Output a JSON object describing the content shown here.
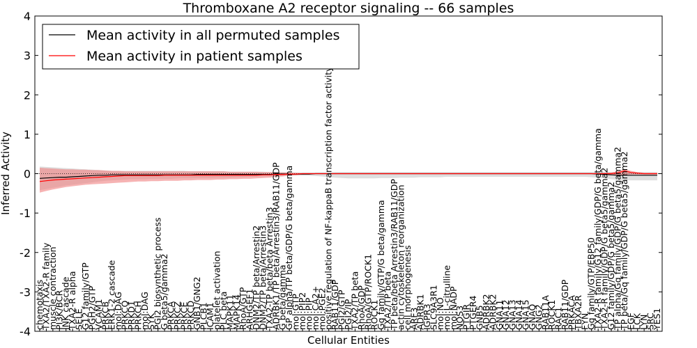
{
  "chart_data": {
    "type": "line",
    "title": "Thromboxane A2 receptor signaling -- 66 samples",
    "xlabel": "Cellular Entities",
    "ylabel": "Inferred Activity",
    "ylim": [
      -4,
      4
    ],
    "yticks": [
      "-4",
      "-3",
      "-2",
      "-1",
      "0",
      "1",
      "2",
      "3",
      "4"
    ],
    "legend": {
      "position": "top-left",
      "entries": [
        {
          "label": "Mean activity in all permuted samples",
          "color": "#000000"
        },
        {
          "label": "Mean activity in patient samples",
          "color": "#ff0000"
        }
      ]
    },
    "colors": {
      "permuted_band": "#c8c8c8",
      "patient_band": "#f08080"
    },
    "categories": [
      "chemotaxis",
      "TXA2/TXA2-R family",
      "muscle contraction",
      "PI3K/BCR",
      "JNK cascade",
      "TXA2-R alpha",
      "SELE",
      "G12 family/GTP",
      "PGH2/GTP",
      "VCAM1",
      "PRKCB",
      "ERK1-2 cascade",
      "mol:DAG",
      "PRKCQ",
      "PRKD1",
      "PRKCH",
      "mol:DAG",
      "SYK",
      "PGI2 biosynthetic process",
      "G beta5/gamma2",
      "PRKCA",
      "PRKCZ",
      "PRKCE",
      "PRKCD",
      "GNB1/GNG2",
      "PLCB1",
      "ICAM1",
      "platelet activation",
      "PLC beta",
      "MAPK11",
      "MAPK14",
      "RhoA/GTP",
      "ARHGEF1",
      "DNM2/TP beta/Arrestin2",
      "DNM2/TP beta/Arrestin3",
      "TXA2-TP beta/beta Arrestin3",
      "ADRBK1/TP beta/Arrestin3/RAB11/GDP",
      "G beta/gamma",
      "GP alpha/TP beta/GDP/G beta/gamma",
      "mol:GTP",
      "mol:PIP2",
      "mol:PIP",
      "mol:CA2+",
      "mol:PGE2",
      "positive regulation of NF-kappaB transcription factor activity",
      "RAB11/GDP",
      "PGI2/GTP",
      "PGI2/IP",
      "TXA2/TP beta",
      "RhoA/GDP",
      "RhoA/GTP/ROCK1",
      "ROCK1",
      "Gq family/GTP/G beta/gamma",
      "TXA2/TP beta",
      "TP beta/beta Arrestin3/RAB11/GDP",
      "actin cytoskeleton reorganization",
      "cell morphogenesis",
      "ARF3",
      "ADRBK1",
      "IGPR3",
      "SLC9A3R1",
      "mol:NO",
      "mol:L-citrulline",
      "mol:NADP",
      "NOS3",
      "PTGIR",
      "PTGER4",
      "GNB5",
      "ADRBK2",
      "ADRBK2",
      "GNA11",
      "GNA12",
      "GNA13",
      "GNA14",
      "GNA15",
      "GNAQ",
      "GNG2",
      "RAB11A",
      "ROCK1",
      "RAC1",
      "RAB11/GDP",
      "PRKACA",
      "TBXA2R",
      "FYN",
      "Gq family/GTP/EBP50",
      "TXA2-R family/G12 family/GDP/G beta/gamma",
      "TXA2-R family/GDP/G beta5/gamma2",
      "G12 family/GDP/G beta5/gamma2",
      "TP alpha/Gq family/GDP/G beta5/gamma2",
      "TP beta/Gq family/GDP/G beta5/gamma2",
      "EGF",
      "LCK",
      "LYN",
      "SRC",
      "YES1"
    ],
    "permuted_mean": [
      -0.12,
      -0.11,
      -0.1,
      -0.09,
      -0.09,
      -0.08,
      -0.07,
      -0.06,
      -0.05,
      -0.04,
      -0.04,
      -0.03,
      -0.03,
      -0.03,
      -0.03,
      -0.03,
      -0.03,
      -0.03,
      -0.03,
      -0.03,
      -0.03,
      -0.03,
      -0.03,
      -0.03,
      -0.02,
      -0.02,
      -0.02,
      -0.02,
      -0.02,
      -0.02,
      -0.02,
      -0.02,
      -0.02,
      -0.02,
      -0.02,
      -0.02,
      -0.01,
      -0.01,
      -0.01,
      -0.01,
      -0.01,
      -0.01,
      0.0,
      0.0,
      0.0,
      0.0,
      0.0,
      0.0,
      0.0,
      0.0,
      0.0,
      0.0,
      0.0,
      0.0,
      0.0,
      0.0,
      0.0,
      0.0,
      0.0,
      0.0,
      0.0,
      0.0,
      0.0,
      0.0,
      0.0,
      0.0,
      0.0,
      0.0,
      0.0,
      0.0,
      0.0,
      0.0,
      0.0,
      0.0,
      0.0,
      0.0,
      0.0,
      0.0,
      0.0,
      0.0,
      0.0,
      0.0,
      0.0,
      0.0,
      0.0,
      -0.01,
      -0.02,
      -0.03,
      -0.04,
      -0.04,
      -0.04,
      -0.04,
      -0.04,
      -0.04,
      -0.04
    ],
    "permuted_upper": [
      0.18,
      0.17,
      0.16,
      0.15,
      0.14,
      0.13,
      0.12,
      0.11,
      0.1,
      0.09,
      0.08,
      0.07,
      0.07,
      0.07,
      0.07,
      0.07,
      0.07,
      0.07,
      0.07,
      0.07,
      0.07,
      0.07,
      0.07,
      0.06,
      0.06,
      0.06,
      0.06,
      0.06,
      0.06,
      0.05,
      0.05,
      0.05,
      0.05,
      0.05,
      0.05,
      0.04,
      0.04,
      0.04,
      0.04,
      0.03,
      0.03,
      0.03,
      0.03,
      0.03,
      0.03,
      0.04,
      0.04,
      0.04,
      0.04,
      0.04,
      0.04,
      0.04,
      0.04,
      0.04,
      0.04,
      0.04,
      0.04,
      0.04,
      0.04,
      0.04,
      0.04,
      0.04,
      0.04,
      0.04,
      0.04,
      0.04,
      0.04,
      0.04,
      0.04,
      0.04,
      0.04,
      0.04,
      0.04,
      0.04,
      0.04,
      0.04,
      0.04,
      0.04,
      0.04,
      0.04,
      0.04,
      0.04,
      0.04,
      0.04,
      0.04,
      0.05,
      0.05,
      0.04,
      0.04,
      0.04,
      0.04,
      0.04,
      0.04,
      0.04,
      0.04
    ],
    "permuted_lower": [
      -0.42,
      -0.39,
      -0.36,
      -0.33,
      -0.3,
      -0.28,
      -0.26,
      -0.24,
      -0.22,
      -0.2,
      -0.18,
      -0.17,
      -0.16,
      -0.15,
      -0.14,
      -0.14,
      -0.14,
      -0.13,
      -0.13,
      -0.13,
      -0.13,
      -0.12,
      -0.12,
      -0.12,
      -0.11,
      -0.11,
      -0.11,
      -0.1,
      -0.1,
      -0.1,
      -0.09,
      -0.09,
      -0.08,
      -0.08,
      -0.07,
      -0.07,
      -0.06,
      -0.06,
      -0.05,
      -0.05,
      -0.05,
      -0.05,
      -0.06,
      -0.07,
      -0.09,
      -0.1,
      -0.11,
      -0.12,
      -0.12,
      -0.12,
      -0.12,
      -0.12,
      -0.11,
      -0.11,
      -0.11,
      -0.1,
      -0.1,
      -0.1,
      -0.09,
      -0.09,
      -0.09,
      -0.09,
      -0.08,
      -0.08,
      -0.08,
      -0.08,
      -0.08,
      -0.08,
      -0.08,
      -0.08,
      -0.08,
      -0.08,
      -0.08,
      -0.08,
      -0.08,
      -0.08,
      -0.08,
      -0.08,
      -0.08,
      -0.08,
      -0.08,
      -0.08,
      -0.08,
      -0.08,
      -0.09,
      -0.1,
      -0.12,
      -0.14,
      -0.16,
      -0.17,
      -0.17,
      -0.17,
      -0.17,
      -0.17,
      -0.17
    ],
    "patient_mean": [
      -0.2,
      -0.18,
      -0.16,
      -0.15,
      -0.14,
      -0.13,
      -0.12,
      -0.11,
      -0.1,
      -0.09,
      -0.08,
      -0.07,
      -0.06,
      -0.05,
      -0.05,
      -0.05,
      -0.05,
      -0.05,
      -0.05,
      -0.04,
      -0.04,
      -0.04,
      -0.04,
      -0.04,
      -0.04,
      -0.04,
      -0.04,
      -0.04,
      -0.04,
      -0.04,
      -0.04,
      -0.04,
      -0.04,
      -0.04,
      -0.03,
      -0.03,
      -0.02,
      -0.02,
      -0.01,
      -0.01,
      0.0,
      0.0,
      0.0,
      0.0,
      0.0,
      0.0,
      0.0,
      0.0,
      0.0,
      0.0,
      0.0,
      0.0,
      0.0,
      0.0,
      0.0,
      0.0,
      0.0,
      0.0,
      0.0,
      0.0,
      0.0,
      0.0,
      0.0,
      0.0,
      0.0,
      0.0,
      0.0,
      0.0,
      0.0,
      0.0,
      0.0,
      0.0,
      0.0,
      0.0,
      0.0,
      0.0,
      0.0,
      0.0,
      0.0,
      0.0,
      0.0,
      0.0,
      0.0,
      0.0,
      0.0,
      0.0,
      0.0,
      0.0,
      0.02,
      0.07,
      0.03,
      0.01,
      0.0,
      0.0,
      0.0
    ],
    "patient_upper": [
      0.15,
      0.14,
      0.13,
      0.12,
      0.11,
      0.11,
      0.1,
      0.1,
      0.09,
      0.09,
      0.08,
      0.07,
      0.07,
      0.06,
      0.06,
      0.06,
      0.06,
      0.06,
      0.06,
      0.06,
      0.06,
      0.06,
      0.06,
      0.06,
      0.06,
      0.06,
      0.06,
      0.06,
      0.06,
      0.05,
      0.05,
      0.05,
      0.05,
      0.05,
      0.04,
      0.04,
      0.03,
      0.03,
      0.02,
      0.02,
      0.01,
      0.01,
      0.01,
      0.01,
      0.01,
      0.01,
      0.01,
      0.01,
      0.01,
      0.01,
      0.01,
      0.01,
      0.01,
      0.01,
      0.01,
      0.01,
      0.01,
      0.01,
      0.01,
      0.01,
      0.01,
      0.01,
      0.01,
      0.01,
      0.01,
      0.01,
      0.01,
      0.01,
      0.01,
      0.01,
      0.01,
      0.01,
      0.01,
      0.01,
      0.01,
      0.01,
      0.01,
      0.01,
      0.01,
      0.01,
      0.01,
      0.01,
      0.01,
      0.01,
      0.01,
      0.01,
      0.02,
      0.03,
      0.06,
      0.12,
      0.07,
      0.04,
      0.02,
      0.02,
      0.02
    ],
    "patient_lower": [
      -0.48,
      -0.44,
      -0.4,
      -0.37,
      -0.34,
      -0.32,
      -0.3,
      -0.28,
      -0.27,
      -0.26,
      -0.25,
      -0.24,
      -0.23,
      -0.22,
      -0.21,
      -0.2,
      -0.2,
      -0.19,
      -0.19,
      -0.18,
      -0.18,
      -0.18,
      -0.17,
      -0.17,
      -0.16,
      -0.16,
      -0.16,
      -0.15,
      -0.15,
      -0.14,
      -0.14,
      -0.13,
      -0.13,
      -0.12,
      -0.11,
      -0.1,
      -0.08,
      -0.07,
      -0.05,
      -0.04,
      -0.02,
      -0.01,
      -0.01,
      -0.01,
      -0.01,
      -0.01,
      -0.01,
      -0.01,
      -0.01,
      -0.01,
      -0.01,
      -0.01,
      -0.01,
      -0.01,
      -0.01,
      -0.01,
      -0.01,
      -0.01,
      -0.01,
      -0.01,
      -0.01,
      -0.01,
      -0.01,
      -0.01,
      -0.01,
      -0.01,
      -0.01,
      -0.01,
      -0.01,
      -0.01,
      -0.01,
      -0.01,
      -0.01,
      -0.01,
      -0.01,
      -0.01,
      -0.01,
      -0.01,
      -0.01,
      -0.01,
      -0.01,
      -0.01,
      -0.01,
      -0.01,
      -0.01,
      -0.01,
      -0.02,
      -0.03,
      -0.04,
      -0.03,
      -0.02,
      -0.02,
      -0.02,
      -0.02,
      -0.02
    ]
  }
}
